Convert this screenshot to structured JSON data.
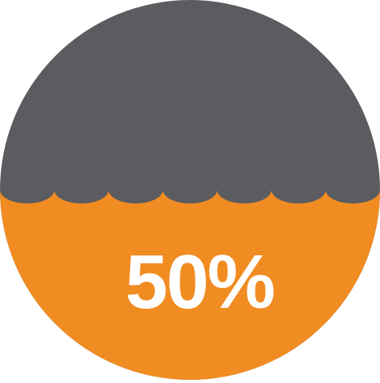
{
  "gauge": {
    "fill_fraction": 0.5,
    "label": "50%",
    "wave_scallop_count": 7
  },
  "colors": {
    "empty_top": "#5b5c60",
    "filled_bottom": "#f18c22",
    "label_text": "#ffffff",
    "background": "#ffffff"
  }
}
